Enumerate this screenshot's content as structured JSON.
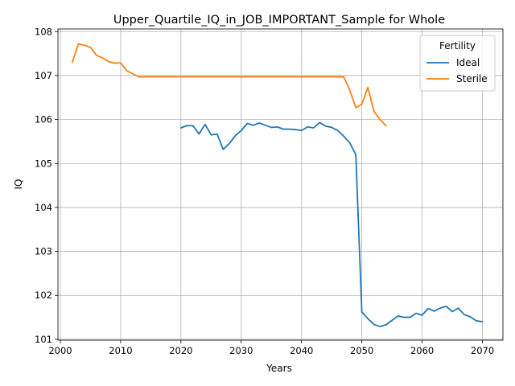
{
  "chart_data": {
    "type": "line",
    "title": "Upper_Quartile_IQ_in_JOB_IMPORTANT_Sample for Whole",
    "xlabel": "Years",
    "ylabel": "IQ",
    "xlim": [
      1999.6,
      2073.4
    ],
    "ylim": [
      100.98,
      108.06
    ],
    "xticks": [
      2000,
      2010,
      2020,
      2030,
      2040,
      2050,
      2060,
      2070
    ],
    "yticks": [
      101,
      102,
      103,
      104,
      105,
      106,
      107,
      108
    ],
    "grid": true,
    "legend": {
      "title": "Fertility",
      "placement": "top-right"
    },
    "series": [
      {
        "name": "Ideal",
        "color": "#1f77b4",
        "x": [
          2020,
          2021,
          2022,
          2023,
          2024,
          2025,
          2026,
          2027,
          2028,
          2029,
          2030,
          2031,
          2032,
          2033,
          2034,
          2035,
          2036,
          2037,
          2038,
          2039,
          2040,
          2041,
          2042,
          2043,
          2044,
          2045,
          2046,
          2047,
          2048,
          2049,
          2050,
          2051,
          2052,
          2053,
          2054,
          2055,
          2056,
          2057,
          2058,
          2059,
          2060,
          2061,
          2062,
          2063,
          2064,
          2065,
          2066,
          2067,
          2068,
          2069,
          2070
        ],
        "y": [
          105.81,
          105.86,
          105.86,
          105.67,
          105.89,
          105.65,
          105.67,
          105.32,
          105.45,
          105.63,
          105.75,
          105.91,
          105.87,
          105.92,
          105.87,
          105.82,
          105.83,
          105.78,
          105.78,
          105.77,
          105.75,
          105.83,
          105.81,
          105.93,
          105.85,
          105.82,
          105.75,
          105.62,
          105.47,
          105.2,
          101.62,
          101.47,
          101.34,
          101.29,
          101.33,
          101.43,
          101.53,
          101.5,
          101.5,
          101.59,
          101.55,
          101.7,
          101.64,
          101.71,
          101.75,
          101.63,
          101.71,
          101.56,
          101.51,
          101.42,
          101.4
        ]
      },
      {
        "name": "Sterile",
        "color": "#ff7f0e",
        "x": [
          2002,
          2003,
          2004,
          2005,
          2006,
          2007,
          2008,
          2009,
          2010,
          2011,
          2012,
          2013,
          2014,
          2015,
          2016,
          2017,
          2018,
          2019,
          2020,
          2021,
          2022,
          2023,
          2024,
          2025,
          2026,
          2027,
          2028,
          2029,
          2030,
          2031,
          2032,
          2033,
          2034,
          2035,
          2036,
          2037,
          2038,
          2039,
          2040,
          2041,
          2042,
          2043,
          2044,
          2045,
          2046,
          2047,
          2048,
          2049,
          2050,
          2051,
          2052,
          2053,
          2054
        ],
        "y": [
          107.31,
          107.72,
          107.69,
          107.64,
          107.46,
          107.4,
          107.32,
          107.28,
          107.29,
          107.11,
          107.04,
          106.97,
          106.97,
          106.97,
          106.97,
          106.97,
          106.97,
          106.97,
          106.97,
          106.97,
          106.97,
          106.97,
          106.97,
          106.97,
          106.97,
          106.97,
          106.97,
          106.97,
          106.97,
          106.97,
          106.97,
          106.97,
          106.97,
          106.97,
          106.97,
          106.97,
          106.97,
          106.97,
          106.97,
          106.97,
          106.97,
          106.97,
          106.97,
          106.97,
          106.97,
          106.97,
          106.67,
          106.27,
          106.35,
          106.73,
          106.19,
          106.0,
          105.86
        ]
      }
    ]
  }
}
